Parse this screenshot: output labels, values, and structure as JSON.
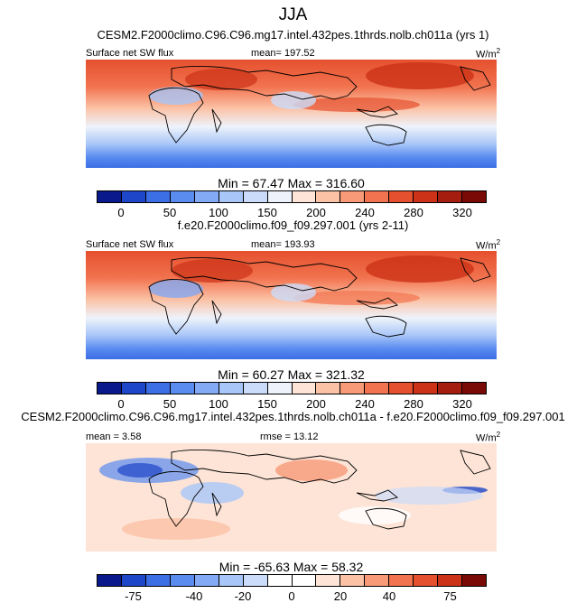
{
  "season": "JJA",
  "panels": [
    {
      "title": "CESM2.F2000climo.C96.C96.mg17.intel.432pes.1thrds.nolb.ch011a (yrs 1)",
      "left_label": "Surface net SW flux",
      "center_label": "mean= 197.52",
      "units": "W/m",
      "units_exp": "2",
      "stats": "Min =  67.47 Max = 316.60",
      "ticks": [
        "0",
        "50",
        "100",
        "150",
        "200",
        "240",
        "280",
        "320"
      ]
    },
    {
      "title": "f.e20.F2000climo.f09_f09.297.001 (yrs 2-11)",
      "left_label": "Surface net SW flux",
      "center_label": "mean= 193.93",
      "units": "W/m",
      "units_exp": "2",
      "stats": "Min =  60.27 Max = 321.32",
      "ticks": [
        "0",
        "50",
        "100",
        "150",
        "200",
        "240",
        "280",
        "320"
      ]
    },
    {
      "title": "CESM2.F2000climo.C96.C96.mg17.intel.432pes.1thrds.nolb.ch011a - f.e20.F2000climo.f09_f09.297.001",
      "left_label": "mean =   3.58",
      "center_label": "rmse =  13.12",
      "units": "W/m",
      "units_exp": "2",
      "stats": "Min = -65.63 Max =  58.32",
      "ticks": [
        "-75",
        "-40",
        "-20",
        "0",
        "20",
        "40",
        "75"
      ]
    }
  ],
  "colors": {
    "abs_scale": [
      "#0a1a8c",
      "#1e46c8",
      "#3c6ee6",
      "#5a8cf0",
      "#82aaf5",
      "#a8c6f8",
      "#cadcfa",
      "#eef3fb",
      "#fde4d6",
      "#fbc2a6",
      "#f89a78",
      "#f2734f",
      "#e5502e",
      "#cc3217",
      "#a51d0e",
      "#7a0a06"
    ],
    "diff_scale": [
      "#0a1a8c",
      "#1e46c8",
      "#3c6ee6",
      "#5a8cf0",
      "#82aaf5",
      "#a8c6f8",
      "#cadcfa",
      "#ffffff",
      "#ffffff",
      "#fde4d6",
      "#fbc2a6",
      "#f89a78",
      "#f2734f",
      "#e5502e",
      "#cc3217",
      "#7a0a06"
    ]
  }
}
